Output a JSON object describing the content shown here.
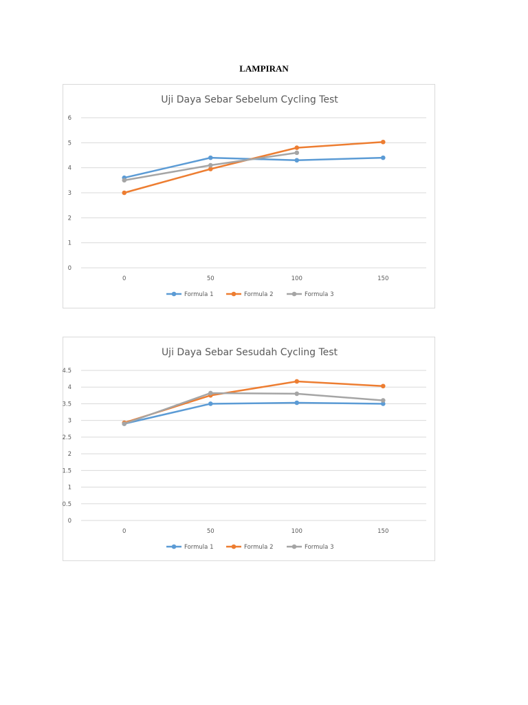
{
  "page": {
    "heading": "LAMPIRAN"
  },
  "chart_data": [
    {
      "type": "line",
      "title": "Uji Daya Sebar Sebelum Cycling Test",
      "categories": [
        "0",
        "50",
        "100",
        "150"
      ],
      "ylim": [
        0,
        6
      ],
      "yticks": [
        "0",
        "1",
        "2",
        "3",
        "4",
        "5",
        "6"
      ],
      "ytick_values": [
        0,
        1,
        2,
        3,
        4,
        5,
        6
      ],
      "grid": true,
      "legend_position": "bottom",
      "series": [
        {
          "name": "Formula 1",
          "color": "#5b9bd5",
          "values": [
            3.6,
            4.4,
            4.3,
            4.4
          ]
        },
        {
          "name": "Formula 2",
          "color": "#ed7d31",
          "values": [
            3.0,
            3.95,
            4.8,
            5.03
          ]
        },
        {
          "name": "Formula 3",
          "color": "#a5a5a5",
          "values": [
            3.5,
            4.1,
            4.6,
            null
          ]
        }
      ]
    },
    {
      "type": "line",
      "title": "Uji Daya Sebar Sesudah Cycling Test",
      "categories": [
        "0",
        "50",
        "100",
        "150"
      ],
      "ylim": [
        0,
        4.5
      ],
      "yticks": [
        "0",
        "0.5",
        "1",
        "1.5",
        "2",
        "2.5",
        "3",
        "3.5",
        "4",
        "4.5"
      ],
      "ytick_values": [
        0,
        0.5,
        1,
        1.5,
        2,
        2.5,
        3,
        3.5,
        4,
        4.5
      ],
      "grid": true,
      "legend_position": "bottom",
      "series": [
        {
          "name": "Formula 1",
          "color": "#5b9bd5",
          "values": [
            2.9,
            3.5,
            3.53,
            3.5
          ]
        },
        {
          "name": "Formula 2",
          "color": "#ed7d31",
          "values": [
            2.93,
            3.75,
            4.17,
            4.03
          ]
        },
        {
          "name": "Formula 3",
          "color": "#a5a5a5",
          "values": [
            2.9,
            3.82,
            3.8,
            3.6
          ]
        }
      ]
    }
  ]
}
